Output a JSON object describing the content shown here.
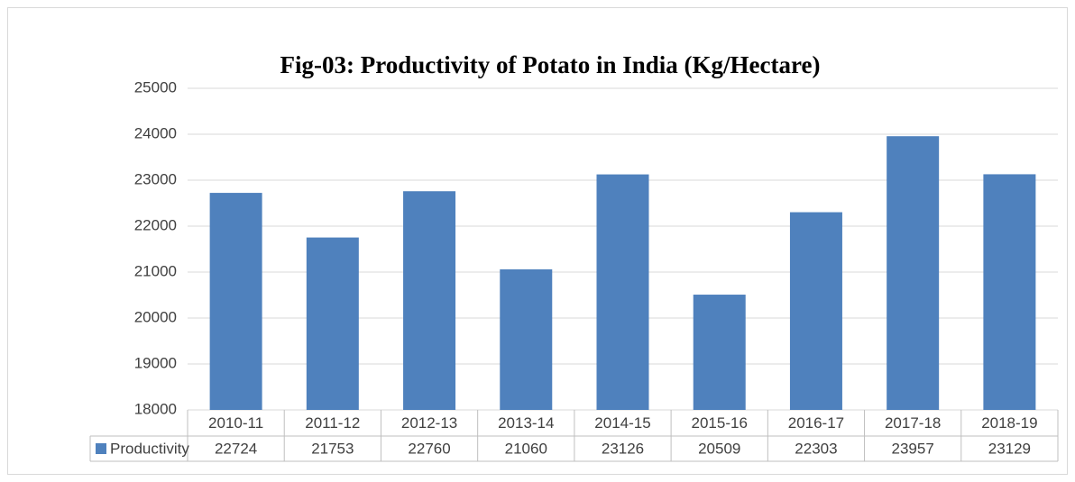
{
  "chart_data": {
    "type": "bar",
    "title": "Fig-03: Productivity of Potato in India (Kg/Hectare)",
    "categories": [
      "2010-11",
      "2011-12",
      "2012-13",
      "2013-14",
      "2014-15",
      "2015-16",
      "2016-17",
      "2017-18",
      "2018-19"
    ],
    "series": [
      {
        "name": "Productivity",
        "color": "#4f81bd",
        "values": [
          22724,
          21753,
          22760,
          21060,
          23126,
          20509,
          22303,
          23957,
          23129
        ]
      }
    ],
    "ylim": [
      18000,
      25000
    ],
    "yticks": [
      18000,
      19000,
      20000,
      21000,
      22000,
      23000,
      24000,
      25000
    ],
    "grid": true
  }
}
